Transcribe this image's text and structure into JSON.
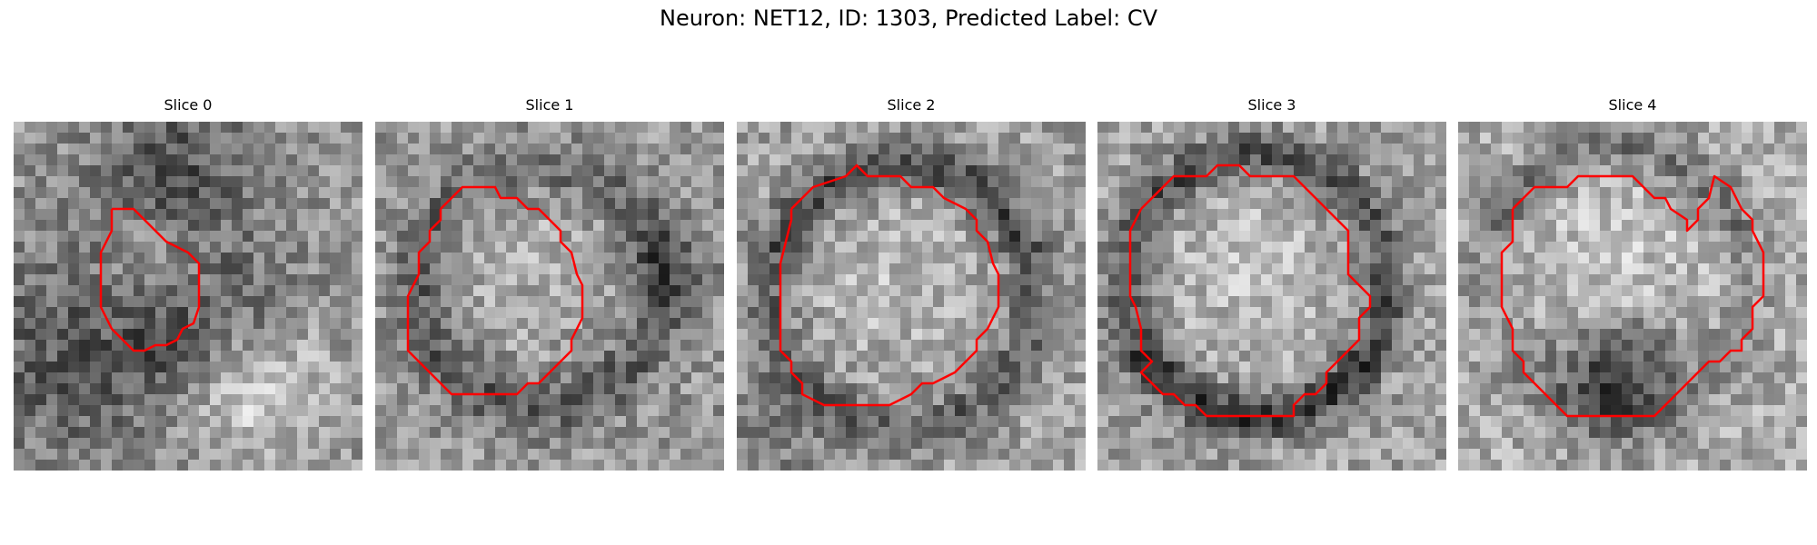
{
  "figure": {
    "title": "Neuron: NET12, ID: 1303, Predicted Label: CV"
  },
  "panels": [
    {
      "title": "Slice 0",
      "pattern": "small-vesicle-dark-surround",
      "contour_color": "#ff0000"
    },
    {
      "title": "Slice 1",
      "pattern": "ring-lower",
      "contour_color": "#ff0000"
    },
    {
      "title": "Slice 2",
      "pattern": "ring-top-dark",
      "contour_color": "#ff0000"
    },
    {
      "title": "Slice 3",
      "pattern": "ring-thick",
      "contour_color": "#ff0000"
    },
    {
      "title": "Slice 4",
      "pattern": "dark-bottom-crescent",
      "contour_color": "#ff0000"
    }
  ]
}
